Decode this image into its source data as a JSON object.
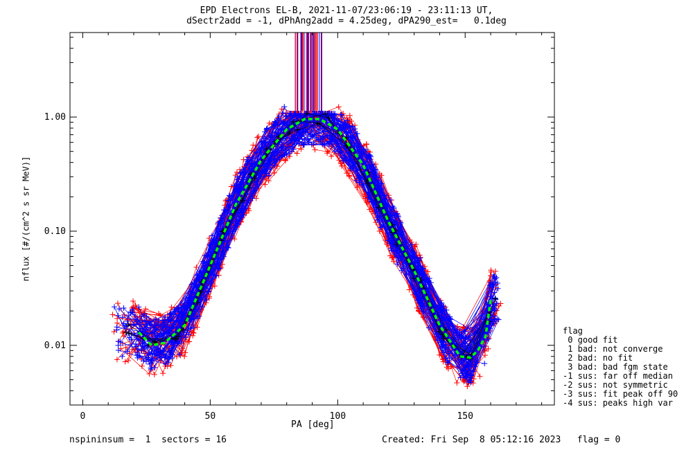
{
  "chart_data": {
    "type": "scatter",
    "title": "EPD Electrons EL-B, 2021-11-07/23:06:19 - 23:11:13 UT,",
    "subtitle": "dSectr2add = -1, dPhAng2add = 4.25deg, dPA290_est=   0.1deg",
    "xlabel": "PA [deg]",
    "ylabel": "nflux [#/(cm^2 s sr MeV)]",
    "x_scale": "linear",
    "y_scale": "log",
    "xlim": [
      -5,
      185
    ],
    "ylim": [
      0.003,
      5.5
    ],
    "x_ticks": [
      0,
      50,
      100,
      150
    ],
    "x_tick_labels": [
      "0",
      "50",
      "100",
      "150"
    ],
    "y_ticks": [
      0.01,
      0.1,
      1.0
    ],
    "y_tick_labels": [
      "0.01",
      "0.10",
      "1.00"
    ],
    "grid": false,
    "legend_position": "right",
    "series": [
      {
        "color": "#ff0000",
        "marker": "+"
      },
      {
        "color": "#0000ff",
        "marker": "+"
      },
      {
        "color": "#000000",
        "marker": "+"
      }
    ],
    "fit_curve": {
      "color": "#00ff00",
      "style": "dashed",
      "x": [
        22,
        27,
        32,
        40,
        50,
        60,
        70,
        80,
        87,
        93,
        100,
        110,
        120,
        130,
        140,
        148,
        152,
        155,
        158,
        160
      ],
      "y": [
        0.013,
        0.01,
        0.0105,
        0.015,
        0.05,
        0.17,
        0.42,
        0.78,
        0.96,
        0.96,
        0.78,
        0.38,
        0.12,
        0.045,
        0.015,
        0.008,
        0.0078,
        0.009,
        0.012,
        0.025
      ]
    }
  },
  "legend": {
    "title": "flag",
    "items": [
      " 0 good fit",
      " 1 bad: not converge",
      " 2 bad: no fit",
      " 3 bad: bad fgm state",
      "-1 sus: far off median",
      "-2 sus: not symmetric",
      "-3 sus: fit peak off 90",
      "-4 sus: peaks high var"
    ]
  },
  "footer": {
    "left": "nspininsum =  1  sectors = 16",
    "right": "Created: Fri Sep  8 05:12:16 2023   flag = 0"
  },
  "colors": {
    "red": "#ff0000",
    "blue": "#0000ff",
    "green": "#00ff00",
    "black": "#000000"
  }
}
